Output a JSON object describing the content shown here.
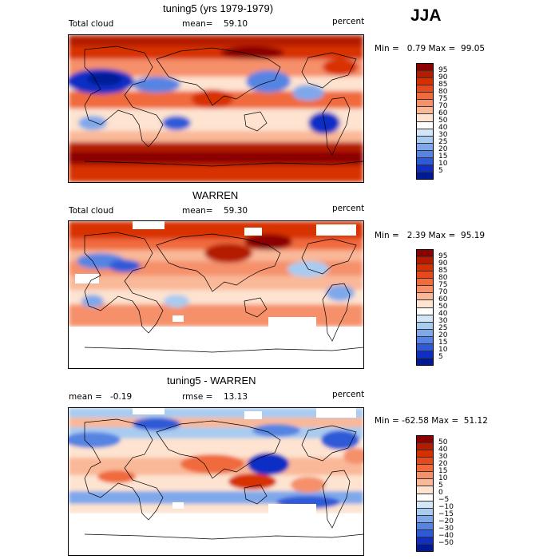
{
  "season": "JJA",
  "panels": [
    {
      "title": "tuning5 (yrs 1979-1979)",
      "left_label": "Total cloud",
      "stat_label": "mean=",
      "stat_value": "59.10",
      "units": "percent",
      "range_text": "Min =   0.79 Max =  99.05",
      "colorbar": {
        "ticks": [
          "95",
          "90",
          "85",
          "80",
          "75",
          "70",
          "60",
          "50",
          "40",
          "30",
          "25",
          "20",
          "15",
          "10",
          "5"
        ],
        "colors": [
          "#8b0000",
          "#b41c00",
          "#d73000",
          "#e5491c",
          "#f06a3c",
          "#f5906a",
          "#f9b898",
          "#fde3d0",
          "#ffffff",
          "#d2e6f8",
          "#a8cbf0",
          "#7fa8ea",
          "#5784e2",
          "#2e5ad8",
          "#0f2fc4",
          "#001a96"
        ]
      },
      "map_style": "cloud_model"
    },
    {
      "title": "WARREN",
      "left_label": "Total cloud",
      "stat_label": "mean=",
      "stat_value": "59.30",
      "units": "percent",
      "range_text": "Min =   2.39 Max =  95.19",
      "colorbar": {
        "ticks": [
          "95",
          "90",
          "85",
          "80",
          "75",
          "70",
          "60",
          "50",
          "40",
          "30",
          "25",
          "20",
          "15",
          "10",
          "5"
        ],
        "colors": [
          "#8b0000",
          "#b41c00",
          "#d73000",
          "#e5491c",
          "#f06a3c",
          "#f5906a",
          "#f9b898",
          "#fde3d0",
          "#ffffff",
          "#d2e6f8",
          "#a8cbf0",
          "#7fa8ea",
          "#5784e2",
          "#2e5ad8",
          "#0f2fc4",
          "#001a96"
        ]
      },
      "map_style": "cloud_obs"
    },
    {
      "title": "tuning5 - WARREN",
      "left_label": "mean =",
      "left_value": "-0.19",
      "stat_label": "rmse =",
      "stat_value": "13.13",
      "units": "percent",
      "range_text": "Min = -62.58 Max =  51.12",
      "colorbar": {
        "ticks": [
          "50",
          "40",
          "30",
          "20",
          "15",
          "10",
          "5",
          "0",
          "−5",
          "−10",
          "−15",
          "−20",
          "−30",
          "−40",
          "−50"
        ],
        "colors": [
          "#8b0000",
          "#b41c00",
          "#d73000",
          "#e5491c",
          "#f06a3c",
          "#f5906a",
          "#f9b898",
          "#fde3d0",
          "#ffffff",
          "#d2e6f8",
          "#a8cbf0",
          "#7fa8ea",
          "#5784e2",
          "#2e5ad8",
          "#0f2fc4",
          "#001a96"
        ]
      },
      "map_style": "difference"
    }
  ]
}
